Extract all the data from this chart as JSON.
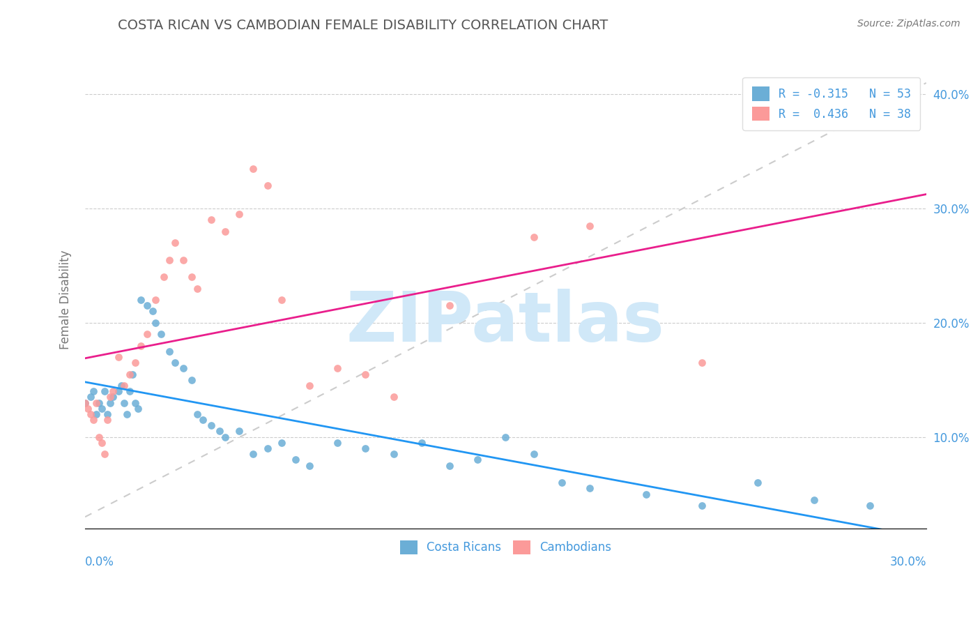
{
  "title": "COSTA RICAN VS CAMBODIAN FEMALE DISABILITY CORRELATION CHART",
  "source_text": "Source: ZipAtlas.com",
  "ylabel": "Female Disability",
  "legend_blue_label": "R = -0.315   N = 53",
  "legend_pink_label": "R =  0.436   N = 38",
  "legend_bottom_blue": "Costa Ricans",
  "legend_bottom_pink": "Cambodians",
  "blue_color": "#6baed6",
  "pink_color": "#fb9a99",
  "blue_line_color": "#2196F3",
  "pink_line_color": "#e91e8c",
  "axis_label_color": "#4499dd",
  "watermark_color": "#d0e8f8",
  "watermark_text": "ZIPatlas",
  "xmin": 0.0,
  "xmax": 0.3,
  "ymin": 0.02,
  "ymax": 0.42,
  "blue_scatter_x": [
    0.0,
    0.002,
    0.003,
    0.004,
    0.005,
    0.006,
    0.007,
    0.008,
    0.009,
    0.01,
    0.012,
    0.013,
    0.014,
    0.015,
    0.016,
    0.017,
    0.018,
    0.019,
    0.02,
    0.022,
    0.024,
    0.025,
    0.027,
    0.03,
    0.032,
    0.035,
    0.038,
    0.04,
    0.042,
    0.045,
    0.048,
    0.05,
    0.055,
    0.06,
    0.065,
    0.07,
    0.075,
    0.08,
    0.09,
    0.1,
    0.11,
    0.12,
    0.13,
    0.14,
    0.15,
    0.16,
    0.17,
    0.18,
    0.2,
    0.22,
    0.24,
    0.26,
    0.28
  ],
  "blue_scatter_y": [
    0.13,
    0.135,
    0.14,
    0.12,
    0.13,
    0.125,
    0.14,
    0.12,
    0.13,
    0.135,
    0.14,
    0.145,
    0.13,
    0.12,
    0.14,
    0.155,
    0.13,
    0.125,
    0.22,
    0.215,
    0.21,
    0.2,
    0.19,
    0.175,
    0.165,
    0.16,
    0.15,
    0.12,
    0.115,
    0.11,
    0.105,
    0.1,
    0.105,
    0.085,
    0.09,
    0.095,
    0.08,
    0.075,
    0.095,
    0.09,
    0.085,
    0.095,
    0.075,
    0.08,
    0.1,
    0.085,
    0.06,
    0.055,
    0.05,
    0.04,
    0.06,
    0.045,
    0.04
  ],
  "pink_scatter_x": [
    0.0,
    0.001,
    0.002,
    0.003,
    0.004,
    0.005,
    0.006,
    0.007,
    0.008,
    0.009,
    0.01,
    0.012,
    0.014,
    0.016,
    0.018,
    0.02,
    0.022,
    0.025,
    0.028,
    0.03,
    0.032,
    0.035,
    0.038,
    0.04,
    0.045,
    0.05,
    0.055,
    0.06,
    0.065,
    0.07,
    0.08,
    0.09,
    0.1,
    0.11,
    0.13,
    0.16,
    0.18,
    0.22
  ],
  "pink_scatter_y": [
    0.13,
    0.125,
    0.12,
    0.115,
    0.13,
    0.1,
    0.095,
    0.085,
    0.115,
    0.135,
    0.14,
    0.17,
    0.145,
    0.155,
    0.165,
    0.18,
    0.19,
    0.22,
    0.24,
    0.255,
    0.27,
    0.255,
    0.24,
    0.23,
    0.29,
    0.28,
    0.295,
    0.335,
    0.32,
    0.22,
    0.145,
    0.16,
    0.155,
    0.135,
    0.215,
    0.275,
    0.285,
    0.165
  ]
}
